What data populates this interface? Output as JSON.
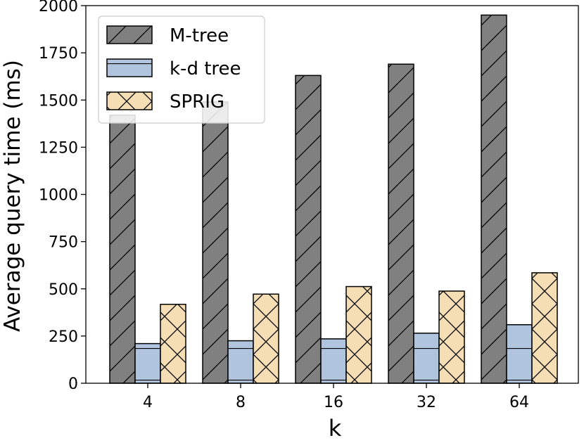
{
  "chart_data": {
    "type": "bar",
    "categories": [
      "4",
      "8",
      "16",
      "32",
      "64"
    ],
    "series": [
      {
        "name": "M-tree",
        "values": [
          1420,
          1490,
          1630,
          1690,
          1950
        ],
        "color": "#808080",
        "hatch": "diagonal"
      },
      {
        "name": "k-d tree",
        "values": [
          210,
          225,
          235,
          265,
          310
        ],
        "color": "#b0c4de",
        "hatch": "horizontal"
      },
      {
        "name": "SPRIG",
        "values": [
          418,
          472,
          512,
          488,
          585
        ],
        "color": "#f5deb3",
        "hatch": "cross"
      }
    ],
    "xlabel": "k",
    "ylabel": "Average query time (ms)",
    "ylim": [
      0,
      2000
    ],
    "yticks": [
      0,
      250,
      500,
      750,
      1000,
      1250,
      1500,
      1750,
      2000
    ],
    "legend_position": "top-left"
  }
}
